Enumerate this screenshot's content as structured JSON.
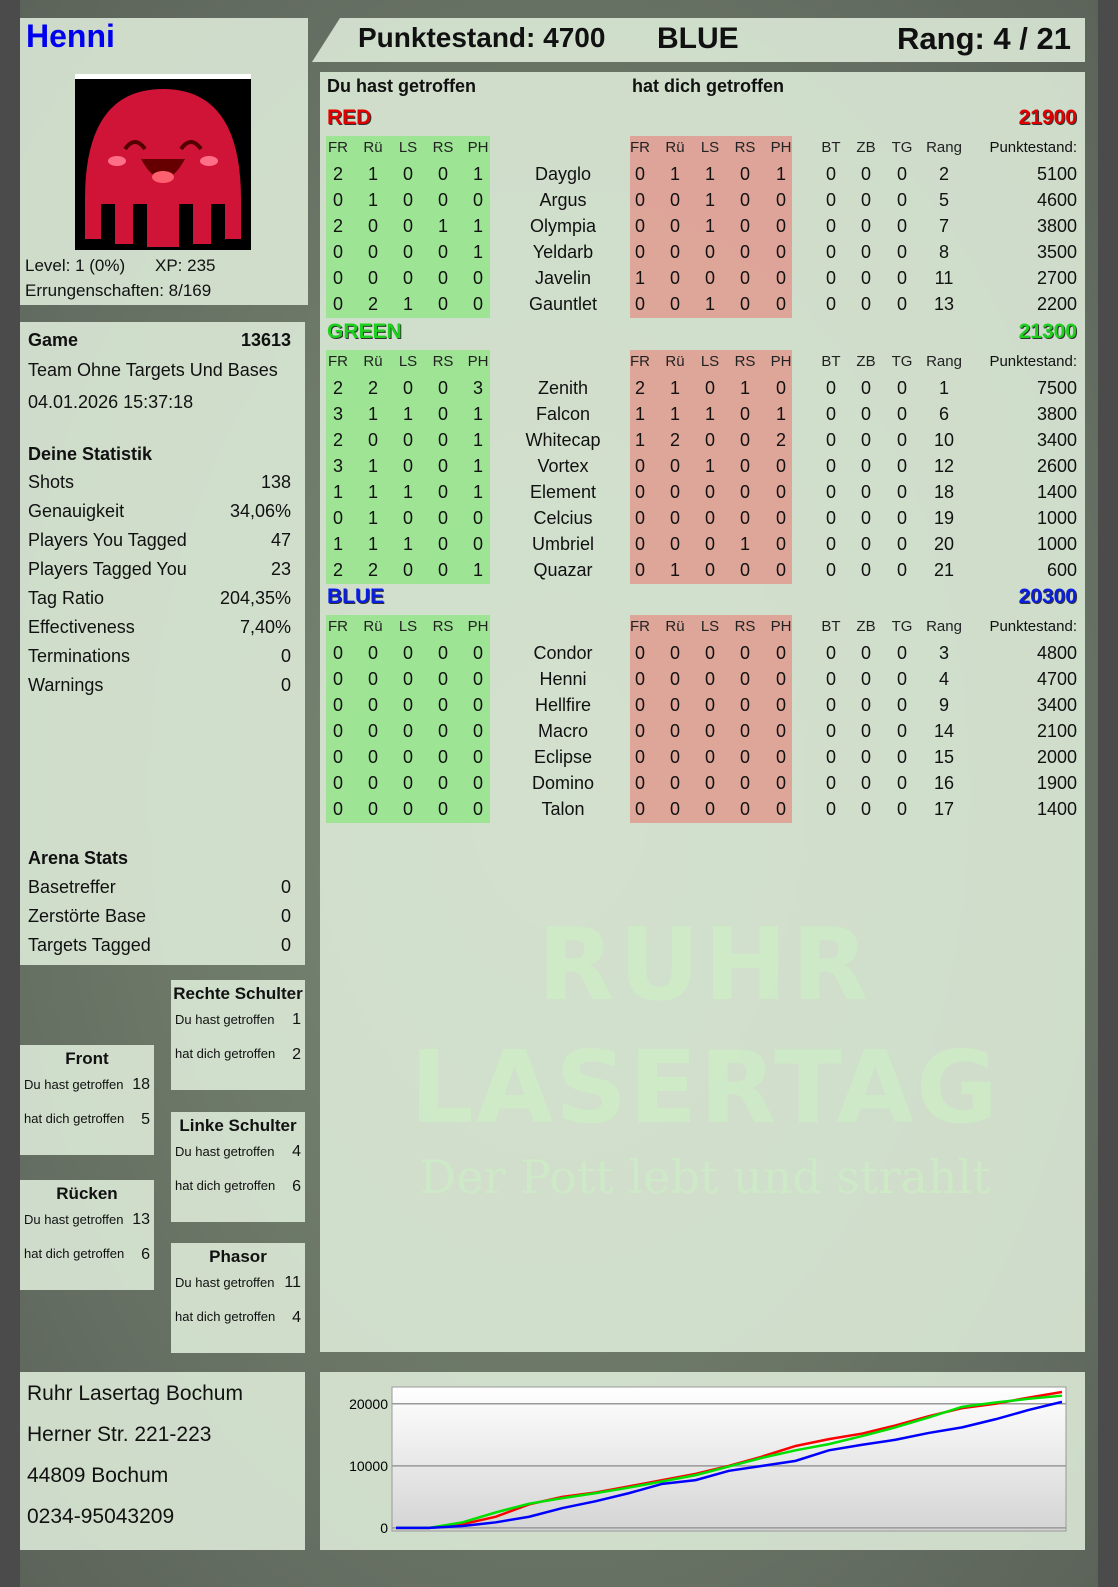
{
  "player": {
    "name": "Henni",
    "level": "Level: 1 (0%)",
    "xp": "XP: 235",
    "achievements": "Errungenschaften: 8/169",
    "avatar": "red-jellyfish-avatar"
  },
  "header": {
    "score": "Punktestand: 4700",
    "team": "BLUE",
    "rank": "Rang: 4 / 21"
  },
  "game": {
    "label": "Game",
    "id": "13613",
    "mode": "Team Ohne Targets Und Bases",
    "datetime": "04.01.2026 15:37:18"
  },
  "stats": {
    "title": "Deine Statistik",
    "items": [
      {
        "label": "Shots",
        "value": "138"
      },
      {
        "label": "Genauigkeit",
        "value": "34,06%"
      },
      {
        "label": "Players You Tagged",
        "value": "47"
      },
      {
        "label": "Players Tagged You",
        "value": "23"
      },
      {
        "label": "Tag Ratio",
        "value": "204,35%"
      },
      {
        "label": "Effectiveness",
        "value": "7,40%"
      },
      {
        "label": "Terminations",
        "value": "0"
      },
      {
        "label": "Warnings",
        "value": "0"
      }
    ]
  },
  "arena": {
    "title": "Arena Stats",
    "items": [
      {
        "label": "Basetreffer",
        "value": "0"
      },
      {
        "label": "Zerstörte Base",
        "value": "0"
      },
      {
        "label": "Targets Tagged",
        "value": "0"
      }
    ]
  },
  "zones": [
    {
      "title": "Rechte Schulter",
      "hit_label": "Du hast getroffen",
      "hit": "1",
      "got_label": "hat dich getroffen",
      "got": "2"
    },
    {
      "title": "Front",
      "hit_label": "Du hast getroffen",
      "hit": "18",
      "got_label": "hat dich getroffen",
      "got": "5"
    },
    {
      "title": "Linke Schulter",
      "hit_label": "Du hast getroffen",
      "hit": "4",
      "got_label": "hat dich getroffen",
      "got": "6"
    },
    {
      "title": "Rücken",
      "hit_label": "Du hast getroffen",
      "hit": "13",
      "got_label": "hat dich getroffen",
      "got": "6"
    },
    {
      "title": "Phasor",
      "hit_label": "Du hast getroffen",
      "hit": "11",
      "got_label": "hat dich getroffen",
      "got": "4"
    }
  ],
  "address": [
    "Ruhr Lasertag Bochum",
    "Herner Str. 221-223",
    "44809 Bochum",
    "0234-95043209"
  ],
  "watermark": {
    "line1": "RUHR",
    "line2": "LASERTAG",
    "line3": "Der Pott lebt und strahlt"
  },
  "table": {
    "dealt_label": "Du hast getroffen",
    "received_label": "hat dich getroffen",
    "hit_cols": [
      "FR",
      "Rü",
      "LS",
      "RS",
      "PH"
    ],
    "extra_cols": [
      "BT",
      "ZB",
      "TG",
      "Rang",
      "Punktestand:"
    ],
    "teams": [
      {
        "name": "RED",
        "total": "21900",
        "color": "#e00000",
        "rows": [
          {
            "name": "Dayglo",
            "dealt": [
              2,
              1,
              0,
              0,
              1
            ],
            "received": [
              0,
              1,
              1,
              0,
              1
            ],
            "extra": [
              0,
              0,
              0,
              2,
              5100
            ]
          },
          {
            "name": "Argus",
            "dealt": [
              0,
              1,
              0,
              0,
              0
            ],
            "received": [
              0,
              0,
              1,
              0,
              0
            ],
            "extra": [
              0,
              0,
              0,
              5,
              4600
            ]
          },
          {
            "name": "Olympia",
            "dealt": [
              2,
              0,
              0,
              1,
              1
            ],
            "received": [
              0,
              0,
              1,
              0,
              0
            ],
            "extra": [
              0,
              0,
              0,
              7,
              3800
            ]
          },
          {
            "name": "Yeldarb",
            "dealt": [
              0,
              0,
              0,
              0,
              1
            ],
            "received": [
              0,
              0,
              0,
              0,
              0
            ],
            "extra": [
              0,
              0,
              0,
              8,
              3500
            ]
          },
          {
            "name": "Javelin",
            "dealt": [
              0,
              0,
              0,
              0,
              0
            ],
            "received": [
              1,
              0,
              0,
              0,
              0
            ],
            "extra": [
              0,
              0,
              0,
              11,
              2700
            ]
          },
          {
            "name": "Gauntlet",
            "dealt": [
              0,
              2,
              1,
              0,
              0
            ],
            "received": [
              0,
              0,
              1,
              0,
              0
            ],
            "extra": [
              0,
              0,
              0,
              13,
              2200
            ]
          }
        ]
      },
      {
        "name": "GREEN",
        "total": "21300",
        "color": "#1ed01e",
        "rows": [
          {
            "name": "Zenith",
            "dealt": [
              2,
              2,
              0,
              0,
              3
            ],
            "received": [
              2,
              1,
              0,
              1,
              0
            ],
            "extra": [
              0,
              0,
              0,
              1,
              7500
            ]
          },
          {
            "name": "Falcon",
            "dealt": [
              3,
              1,
              1,
              0,
              1
            ],
            "received": [
              1,
              1,
              1,
              0,
              1
            ],
            "extra": [
              0,
              0,
              0,
              6,
              3800
            ]
          },
          {
            "name": "Whitecap",
            "dealt": [
              2,
              0,
              0,
              0,
              1
            ],
            "received": [
              1,
              2,
              0,
              0,
              2
            ],
            "extra": [
              0,
              0,
              0,
              10,
              3400
            ]
          },
          {
            "name": "Vortex",
            "dealt": [
              3,
              1,
              0,
              0,
              1
            ],
            "received": [
              0,
              0,
              1,
              0,
              0
            ],
            "extra": [
              0,
              0,
              0,
              12,
              2600
            ]
          },
          {
            "name": "Element",
            "dealt": [
              1,
              1,
              1,
              0,
              1
            ],
            "received": [
              0,
              0,
              0,
              0,
              0
            ],
            "extra": [
              0,
              0,
              0,
              18,
              1400
            ]
          },
          {
            "name": "Celcius",
            "dealt": [
              0,
              1,
              0,
              0,
              0
            ],
            "received": [
              0,
              0,
              0,
              0,
              0
            ],
            "extra": [
              0,
              0,
              0,
              19,
              1000
            ]
          },
          {
            "name": "Umbriel",
            "dealt": [
              1,
              1,
              1,
              0,
              0
            ],
            "received": [
              0,
              0,
              0,
              1,
              0
            ],
            "extra": [
              0,
              0,
              0,
              20,
              1000
            ]
          },
          {
            "name": "Quazar",
            "dealt": [
              2,
              2,
              0,
              0,
              1
            ],
            "received": [
              0,
              1,
              0,
              0,
              0
            ],
            "extra": [
              0,
              0,
              0,
              21,
              600
            ]
          }
        ]
      },
      {
        "name": "BLUE",
        "total": "20300",
        "color": "#0a1ee0",
        "rows": [
          {
            "name": "Condor",
            "dealt": [
              0,
              0,
              0,
              0,
              0
            ],
            "received": [
              0,
              0,
              0,
              0,
              0
            ],
            "extra": [
              0,
              0,
              0,
              3,
              4800
            ]
          },
          {
            "name": "Henni",
            "dealt": [
              0,
              0,
              0,
              0,
              0
            ],
            "received": [
              0,
              0,
              0,
              0,
              0
            ],
            "extra": [
              0,
              0,
              0,
              4,
              4700
            ]
          },
          {
            "name": "Hellfire",
            "dealt": [
              0,
              0,
              0,
              0,
              0
            ],
            "received": [
              0,
              0,
              0,
              0,
              0
            ],
            "extra": [
              0,
              0,
              0,
              9,
              3400
            ]
          },
          {
            "name": "Macro",
            "dealt": [
              0,
              0,
              0,
              0,
              0
            ],
            "received": [
              0,
              0,
              0,
              0,
              0
            ],
            "extra": [
              0,
              0,
              0,
              14,
              2100
            ]
          },
          {
            "name": "Eclipse",
            "dealt": [
              0,
              0,
              0,
              0,
              0
            ],
            "received": [
              0,
              0,
              0,
              0,
              0
            ],
            "extra": [
              0,
              0,
              0,
              15,
              2000
            ]
          },
          {
            "name": "Domino",
            "dealt": [
              0,
              0,
              0,
              0,
              0
            ],
            "received": [
              0,
              0,
              0,
              0,
              0
            ],
            "extra": [
              0,
              0,
              0,
              16,
              1900
            ]
          },
          {
            "name": "Talon",
            "dealt": [
              0,
              0,
              0,
              0,
              0
            ],
            "received": [
              0,
              0,
              0,
              0,
              0
            ],
            "extra": [
              0,
              0,
              0,
              17,
              1400
            ]
          }
        ]
      }
    ]
  },
  "chart_data": {
    "type": "line",
    "title": "",
    "xlabel": "",
    "ylabel": "",
    "ylim": [
      -500,
      22700
    ],
    "yticks": [
      0,
      10000,
      20000
    ],
    "grid": true,
    "legend": "none",
    "x": [
      0,
      1,
      2,
      3,
      4,
      5,
      6,
      7,
      8,
      9,
      10,
      11,
      12,
      13,
      14,
      15,
      16,
      17,
      18,
      19,
      20
    ],
    "series": [
      {
        "color": "#ff0000",
        "values": [
          0,
          0,
          600,
          1800,
          3800,
          5000,
          5700,
          6700,
          7700,
          8700,
          10000,
          11500,
          13200,
          14300,
          15200,
          16500,
          18000,
          19300,
          20000,
          21000,
          21900
        ]
      },
      {
        "color": "#00e000",
        "values": [
          0,
          0,
          900,
          2500,
          3900,
          4800,
          5600,
          6500,
          7500,
          8500,
          9900,
          11300,
          12500,
          13500,
          14800,
          16200,
          17800,
          19500,
          20200,
          20800,
          21300
        ]
      },
      {
        "color": "#0000ff",
        "values": [
          0,
          0,
          300,
          900,
          1800,
          3200,
          4300,
          5600,
          7100,
          7700,
          9200,
          10000,
          10800,
          12500,
          13400,
          14200,
          15300,
          16200,
          17500,
          19000,
          20300
        ]
      }
    ]
  }
}
